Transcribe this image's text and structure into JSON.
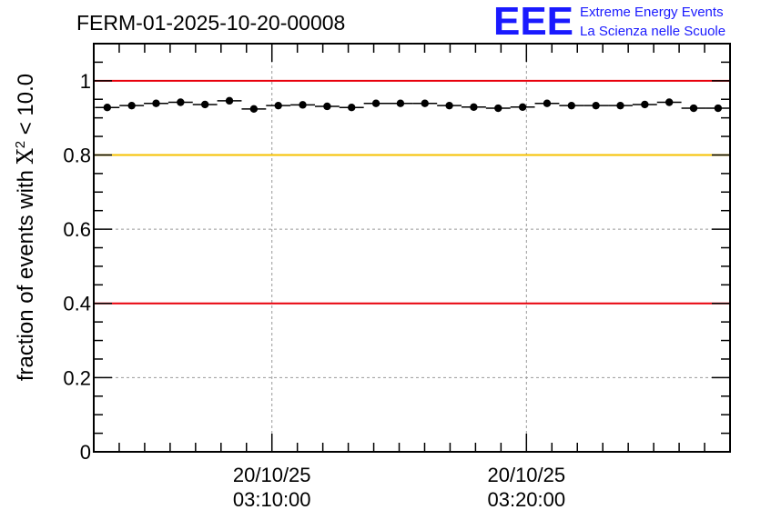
{
  "header": {
    "run_title": "FERM-01-2025-10-20-00008",
    "logo_letters": "EEE",
    "logo_line1": "Extreme Energy Events",
    "logo_line2": "La Scienza nelle Scuole"
  },
  "chart_data": {
    "type": "scatter",
    "title": "FERM-01-2025-10-20-00008",
    "ylabel_prefix": "fraction of events with ",
    "ylabel_symbol": "X",
    "ylabel_superscript": "2",
    "ylabel_suffix": " < 10.0",
    "ylim": [
      0,
      1.1
    ],
    "xlim_minutes": [
      0,
      25
    ],
    "y_ticks": [
      {
        "value": 0,
        "label": "0"
      },
      {
        "value": 0.2,
        "label": "0.2"
      },
      {
        "value": 0.4,
        "label": "0.4"
      },
      {
        "value": 0.6,
        "label": "0.6"
      },
      {
        "value": 0.8,
        "label": "0.8"
      },
      {
        "value": 1,
        "label": "1"
      }
    ],
    "x_ticks": [
      {
        "minutes": 7,
        "date": "20/10/25",
        "time": "03:10:00"
      },
      {
        "minutes": 17,
        "date": "20/10/25",
        "time": "03:20:00"
      }
    ],
    "grid": true,
    "reference_lines": [
      {
        "y": 1.0,
        "color": "#e8000b"
      },
      {
        "y": 0.8,
        "color": "#f5c000"
      },
      {
        "y": 0.4,
        "color": "#e8000b"
      }
    ],
    "points": {
      "bin_width_minutes": 0.96,
      "x_minutes": [
        0.53,
        1.49,
        2.45,
        3.41,
        4.37,
        5.33,
        6.29,
        7.25,
        8.21,
        9.17,
        10.13,
        11.09,
        12.05,
        13.01,
        13.97,
        14.93,
        15.89,
        16.85,
        17.81,
        18.77,
        19.73,
        20.69,
        21.65,
        22.61,
        23.57,
        24.53
      ],
      "y": [
        0.928,
        0.933,
        0.939,
        0.942,
        0.936,
        0.946,
        0.924,
        0.933,
        0.935,
        0.931,
        0.928,
        0.939,
        0.939,
        0.939,
        0.933,
        0.929,
        0.926,
        0.929,
        0.939,
        0.933,
        0.933,
        0.933,
        0.936,
        0.942,
        0.926,
        0.926
      ]
    },
    "colors": {
      "points": "#000000",
      "grid": "#999999",
      "axes": "#000000",
      "logo": "#1a1aff"
    }
  }
}
